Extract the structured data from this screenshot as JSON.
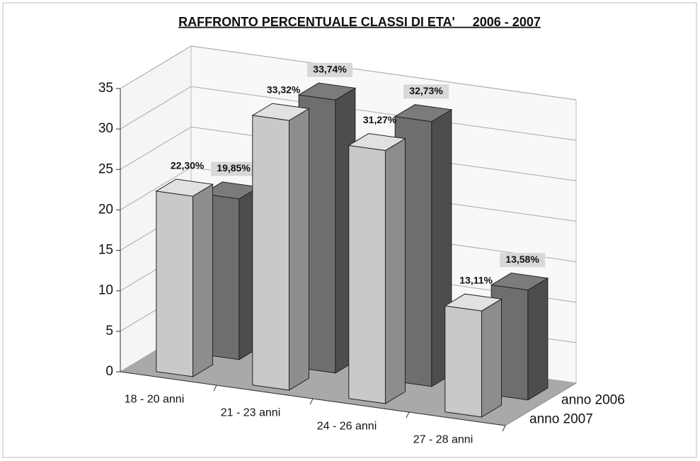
{
  "chart_data": {
    "type": "bar3d",
    "title": "RAFFRONTO PERCENTUALE CLASSI DI ETA'     2006 - 2007",
    "categories": [
      "18 - 20 anni",
      "21 - 23 anni",
      "24 - 26 anni",
      "27 - 28 anni"
    ],
    "series": [
      {
        "name": "anno 2006",
        "color": "#6e6e6e",
        "values": [
          19.85,
          33.74,
          32.73,
          13.58
        ],
        "value_labels": [
          "19,85%",
          "33,74%",
          "32,73%",
          "13,58%"
        ]
      },
      {
        "name": "anno 2007",
        "color": "#c9c9c9",
        "values": [
          22.3,
          33.32,
          31.27,
          13.11
        ],
        "value_labels": [
          "22,30%",
          "33,32%",
          "31,27%",
          "13,11%"
        ]
      }
    ],
    "ylim": [
      0,
      35
    ],
    "yticks": [
      0,
      5,
      10,
      15,
      20,
      25,
      30,
      35
    ],
    "grid": true
  }
}
